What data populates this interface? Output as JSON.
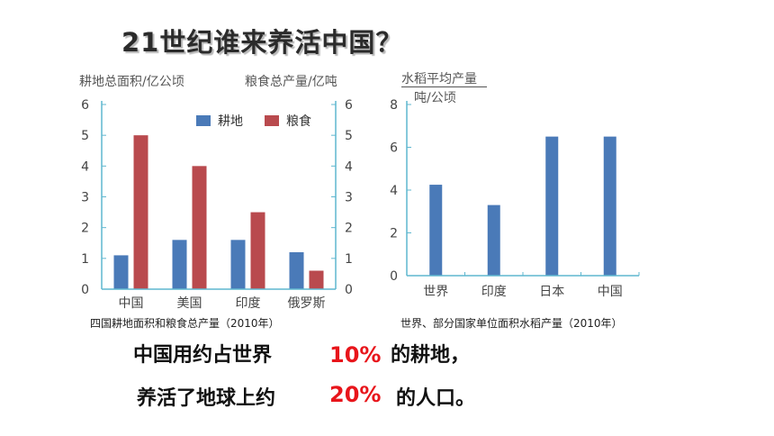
{
  "title": "21世纪谁来养活中国？",
  "chart_data": [
    {
      "type": "bar",
      "title": "",
      "ylabel_left": "耕地总面积/亿公顷",
      "ylabel_right": "粮食总产量/亿吨",
      "categories": [
        "中国",
        "美国",
        "印度",
        "俄罗斯"
      ],
      "series": [
        {
          "name": "耕地",
          "values": [
            1.1,
            1.6,
            1.6,
            1.2
          ]
        },
        {
          "name": "粮食",
          "values": [
            5.0,
            4.0,
            2.5,
            0.6
          ]
        }
      ],
      "ylim": [
        0,
        6
      ],
      "yticks": [
        "0",
        "1",
        "2",
        "3",
        "4",
        "5",
        "6"
      ],
      "legend_placement": "top-right",
      "colors": {
        "耕地": "#4a7ab8",
        "粮食": "#b94a4e"
      },
      "caption": "四国耕地面积和粮食总产量（2010年）"
    },
    {
      "type": "bar",
      "title": "",
      "ylabel_line1": "水稻平均产量",
      "ylabel_line2": "吨/公顷",
      "categories": [
        "世界",
        "印度",
        "日本",
        "中国"
      ],
      "series": [
        {
          "values": [
            4.25,
            3.3,
            6.5,
            6.5
          ]
        }
      ],
      "ylim": [
        0,
        8
      ],
      "yticks": [
        "0",
        "2",
        "4",
        "6",
        "8"
      ],
      "colors": {
        "bar": "#4a7ab8"
      },
      "caption": "世界、部分国家单位面积水稻产量（2010年）"
    }
  ],
  "statement": {
    "line1_text": "中国用约占世界",
    "line1_pct": "10%",
    "line1_suffix": "的耕地，",
    "line2_text": "养活了地球上约",
    "line2_pct": "20%",
    "line2_suffix": "的人口。",
    "accent_color": "#e8151b"
  }
}
